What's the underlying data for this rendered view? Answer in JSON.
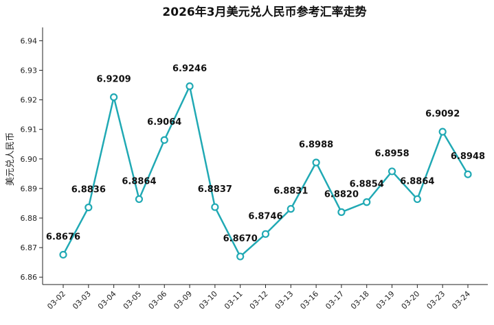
{
  "chart_data": {
    "type": "line",
    "title": "2026年3月美元兑人民币参考汇率走势",
    "xlabel": "",
    "ylabel": "美元兑人民币",
    "categories": [
      "03-02",
      "03-03",
      "03-04",
      "03-05",
      "03-06",
      "03-09",
      "03-10",
      "03-11",
      "03-12",
      "03-13",
      "03-16",
      "03-17",
      "03-18",
      "03-19",
      "03-20",
      "03-23",
      "03-24"
    ],
    "series": [
      {
        "values": [
          6.8676,
          6.8836,
          6.9209,
          6.8864,
          6.9064,
          6.9246,
          6.8837,
          6.867,
          6.8746,
          6.8831,
          6.8988,
          6.882,
          6.8854,
          6.8958,
          6.8864,
          6.9092,
          6.8948
        ],
        "labels": [
          "6.8676",
          "6.8836",
          "6.9209",
          "6.8864",
          "6.9064",
          "6.9246",
          "6.8837",
          "6.8670",
          "6.8746",
          "6.8831",
          "6.8988",
          "6.8820",
          "6.8854",
          "6.8958",
          "6.8864",
          "6.9092",
          "6.8948"
        ],
        "color": "#20A9B4"
      }
    ],
    "ylim": [
      6.8575,
      6.9445
    ],
    "yticks": [
      6.86,
      6.87,
      6.88,
      6.89,
      6.9,
      6.91,
      6.92,
      6.93,
      6.94
    ],
    "ytick_labels": [
      "6.86",
      "6.87",
      "6.88",
      "6.89",
      "6.90",
      "6.91",
      "6.92",
      "6.93",
      "6.94"
    ],
    "grid": false,
    "legend": "none"
  }
}
